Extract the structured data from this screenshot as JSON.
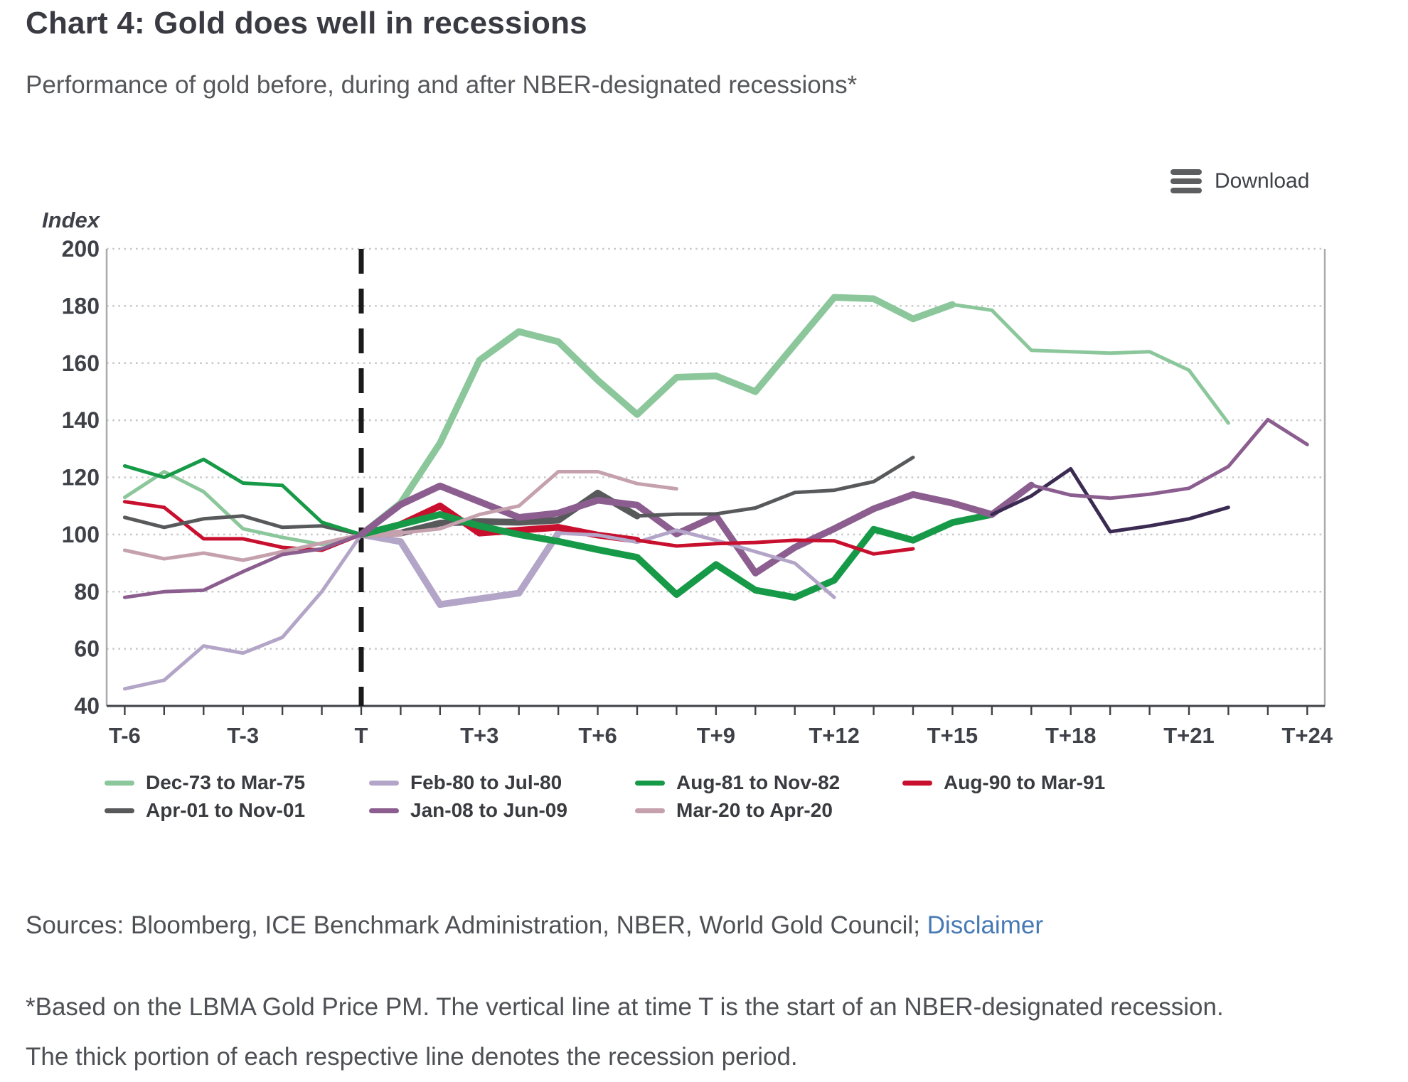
{
  "toolbar": {
    "download_label": "Download"
  },
  "chart_data": {
    "type": "line",
    "title": "Chart 4: Gold does well in recessions",
    "subtitle": "Performance of gold before, during and after NBER-designated recessions*",
    "ylabel": "Index",
    "ylim": [
      40,
      200
    ],
    "ytick_step": 20,
    "x_range_months": [
      -6,
      24
    ],
    "x_tick_labels": [
      "T-6",
      "T-3",
      "T",
      "T+3",
      "T+6",
      "T+9",
      "T+12",
      "T+15",
      "T+18",
      "T+21",
      "T+24"
    ],
    "x_label_every_months": 3,
    "vline_at": "T",
    "gridlines": "horizontal-dotted",
    "legend_position": "bottom",
    "series": [
      {
        "name": "Dec-73 to Mar-75",
        "color": "#8bc79b",
        "x_start": -6,
        "thick_from": 0,
        "thick_to": 15,
        "values": [
          113,
          122,
          115,
          102,
          99,
          96.5,
          100,
          111,
          132,
          161,
          171,
          167.5,
          154,
          142,
          155,
          155.5,
          150,
          166.5,
          183,
          182.5,
          175.5,
          180.5,
          178.5,
          164.5,
          164,
          163.5,
          164,
          157.5,
          139
        ]
      },
      {
        "name": "Feb-80 to Jul-80",
        "color": "#b3a5c7",
        "x_start": -6,
        "thick_from": 0,
        "thick_to": 5,
        "values": [
          46,
          49,
          61,
          58.5,
          64,
          80,
          100,
          97.5,
          75.5,
          77.5,
          79.5,
          100.5,
          99.8,
          97.3,
          101.5,
          98,
          94,
          90,
          78
        ]
      },
      {
        "name": "Aug-81 to Nov-82",
        "color": "#169a47",
        "post_color": "#3b2b52",
        "x_start": -6,
        "thick_from": 0,
        "thick_to": 16,
        "values": [
          124,
          120,
          126.3,
          118,
          117.2,
          104.3,
          100,
          103.5,
          107,
          103,
          100,
          97.6,
          94.7,
          92,
          79,
          89.5,
          80.5,
          78,
          84,
          101.8,
          98,
          104.2,
          107,
          113.5,
          123,
          101,
          103,
          105.5,
          109.5
        ]
      },
      {
        "name": "Aug-90 to Mar-91",
        "color": "#c8102e",
        "x_start": -6,
        "thick_from": 0,
        "thick_to": 7,
        "values": [
          111.5,
          109.5,
          98.5,
          98.5,
          95.5,
          94.5,
          100,
          103.5,
          110,
          100.5,
          101.5,
          102.5,
          99.8,
          98,
          96,
          96.8,
          97.2,
          98,
          97.8,
          93.2,
          95
        ]
      },
      {
        "name": "Apr-01 to Nov-01",
        "color": "#58595b",
        "x_start": -6,
        "thick_from": 0,
        "thick_to": 7,
        "values": [
          106,
          102.5,
          105.5,
          106.5,
          102.5,
          103,
          100,
          100.5,
          104,
          104.5,
          104.3,
          105,
          114.5,
          106.5,
          107.1,
          107.2,
          109.3,
          114.7,
          115.5,
          118.5,
          127
        ]
      },
      {
        "name": "Jan-08 to Jun-09",
        "color": "#8b5e8f",
        "x_start": -6,
        "thick_from": 0,
        "thick_to": 17,
        "values": [
          78,
          80,
          80.5,
          87,
          93,
          95,
          100,
          110.5,
          117,
          111.5,
          106,
          107.5,
          112,
          110.3,
          100.2,
          106.5,
          86.5,
          95.5,
          102,
          109,
          114,
          111,
          107,
          117.3,
          113.8,
          112.7,
          114.1,
          116.2,
          123.8,
          140.2,
          131.5
        ]
      },
      {
        "name": "Mar-20 to Apr-20",
        "color": "#c5a0ad",
        "x_start": -6,
        "thick_from": 0,
        "thick_to": 1,
        "values": [
          94.5,
          91.5,
          93.5,
          91,
          94,
          97,
          100,
          100.5,
          102,
          107,
          110,
          122,
          122,
          117.8,
          116
        ]
      }
    ]
  },
  "notes": {
    "sources_prefix": "Sources: Bloomberg, ICE Benchmark Administration, NBER, World Gold Council; ",
    "disclaimer_link": "Disclaimer",
    "footnote": "*Based on the LBMA Gold Price PM. The vertical line at time T is the start of an NBER-designated recession. The thick portion of each respective line denotes the recession period."
  }
}
